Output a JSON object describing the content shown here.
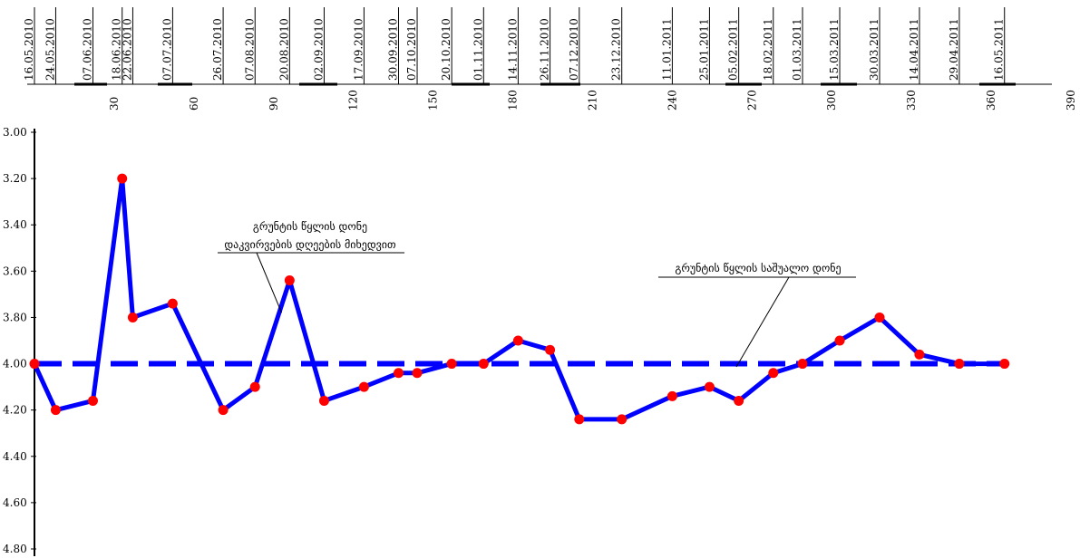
{
  "chart_data": {
    "type": "line",
    "xlim": [
      0,
      390
    ],
    "ylim": [
      3.0,
      4.8
    ],
    "y_inverted": true,
    "x_ticks": [
      30,
      60,
      90,
      120,
      150,
      180,
      210,
      240,
      270,
      300,
      330,
      360,
      390
    ],
    "y_ticks": [
      "3.00",
      "3.20",
      "3.40",
      "3.60",
      "3.80",
      "4.00",
      "4.20",
      "4.40",
      "4.60",
      "4.80"
    ],
    "grid": false,
    "dates": [
      {
        "day": 0,
        "label": "16.05.2010"
      },
      {
        "day": 8,
        "label": "24.05.2010"
      },
      {
        "day": 22,
        "label": "07.06.2010"
      },
      {
        "day": 33,
        "label": "18.06.2010"
      },
      {
        "day": 37,
        "label": "22.06.2010"
      },
      {
        "day": 52,
        "label": "07.07.2010"
      },
      {
        "day": 71,
        "label": "26.07.2010"
      },
      {
        "day": 83,
        "label": "07.08.2010"
      },
      {
        "day": 96,
        "label": "20.08.2010"
      },
      {
        "day": 109,
        "label": "02.09.2010"
      },
      {
        "day": 124,
        "label": "17.09.2010"
      },
      {
        "day": 137,
        "label": "30.09.2010"
      },
      {
        "day": 144,
        "label": "07.10.2010"
      },
      {
        "day": 157,
        "label": "20.10.2010"
      },
      {
        "day": 169,
        "label": "01.11.2010"
      },
      {
        "day": 182,
        "label": "14.11.2010"
      },
      {
        "day": 194,
        "label": "26.11.2010"
      },
      {
        "day": 205,
        "label": "07.12.2010"
      },
      {
        "day": 221,
        "label": "23.12.2010"
      },
      {
        "day": 240,
        "label": "11.01.2011"
      },
      {
        "day": 254,
        "label": "25.01.2011"
      },
      {
        "day": 265,
        "label": "05.02.2011"
      },
      {
        "day": 278,
        "label": "18.02.2011"
      },
      {
        "day": 289,
        "label": "01.03.2011"
      },
      {
        "day": 303,
        "label": "15.03.2011"
      },
      {
        "day": 318,
        "label": "30.03.2011"
      },
      {
        "day": 333,
        "label": "14.04.2011"
      },
      {
        "day": 348,
        "label": "29.04.2011"
      },
      {
        "day": 365,
        "label": "16.05.2011"
      }
    ],
    "series": [
      {
        "color": "#0000ff",
        "marker_color": "#ff0000",
        "style": "solid",
        "points": [
          {
            "x": 0,
            "y": 4.0
          },
          {
            "x": 8,
            "y": 4.2
          },
          {
            "x": 22,
            "y": 4.16
          },
          {
            "x": 33,
            "y": 3.2
          },
          {
            "x": 37,
            "y": 3.8
          },
          {
            "x": 52,
            "y": 3.74
          },
          {
            "x": 71,
            "y": 4.2
          },
          {
            "x": 83,
            "y": 4.1
          },
          {
            "x": 96,
            "y": 3.64
          },
          {
            "x": 109,
            "y": 4.16
          },
          {
            "x": 124,
            "y": 4.1
          },
          {
            "x": 137,
            "y": 4.04
          },
          {
            "x": 144,
            "y": 4.04
          },
          {
            "x": 157,
            "y": 4.0
          },
          {
            "x": 169,
            "y": 4.0
          },
          {
            "x": 182,
            "y": 3.9
          },
          {
            "x": 194,
            "y": 3.94
          },
          {
            "x": 205,
            "y": 4.24
          },
          {
            "x": 221,
            "y": 4.24
          },
          {
            "x": 240,
            "y": 4.14
          },
          {
            "x": 254,
            "y": 4.1
          },
          {
            "x": 265,
            "y": 4.16
          },
          {
            "x": 278,
            "y": 4.04
          },
          {
            "x": 289,
            "y": 4.0
          },
          {
            "x": 303,
            "y": 3.9
          },
          {
            "x": 318,
            "y": 3.8
          },
          {
            "x": 333,
            "y": 3.96
          },
          {
            "x": 348,
            "y": 4.0
          },
          {
            "x": 365,
            "y": 4.0
          }
        ]
      },
      {
        "color": "#0000ff",
        "style": "dashed",
        "points": [
          {
            "x": 0,
            "y": 4.0
          },
          {
            "x": 365,
            "y": 4.0
          }
        ]
      }
    ],
    "annotations": [
      {
        "lines": [
          "გრუნტის წყლის დონე",
          "დაკვირვების დღეების მიხედვით"
        ],
        "target": {
          "x": 93,
          "y": 3.78
        }
      },
      {
        "lines": [
          "გრუნტის წყლის საშუალო დონე"
        ],
        "target": {
          "x": 255,
          "y": 4.0
        }
      }
    ]
  }
}
